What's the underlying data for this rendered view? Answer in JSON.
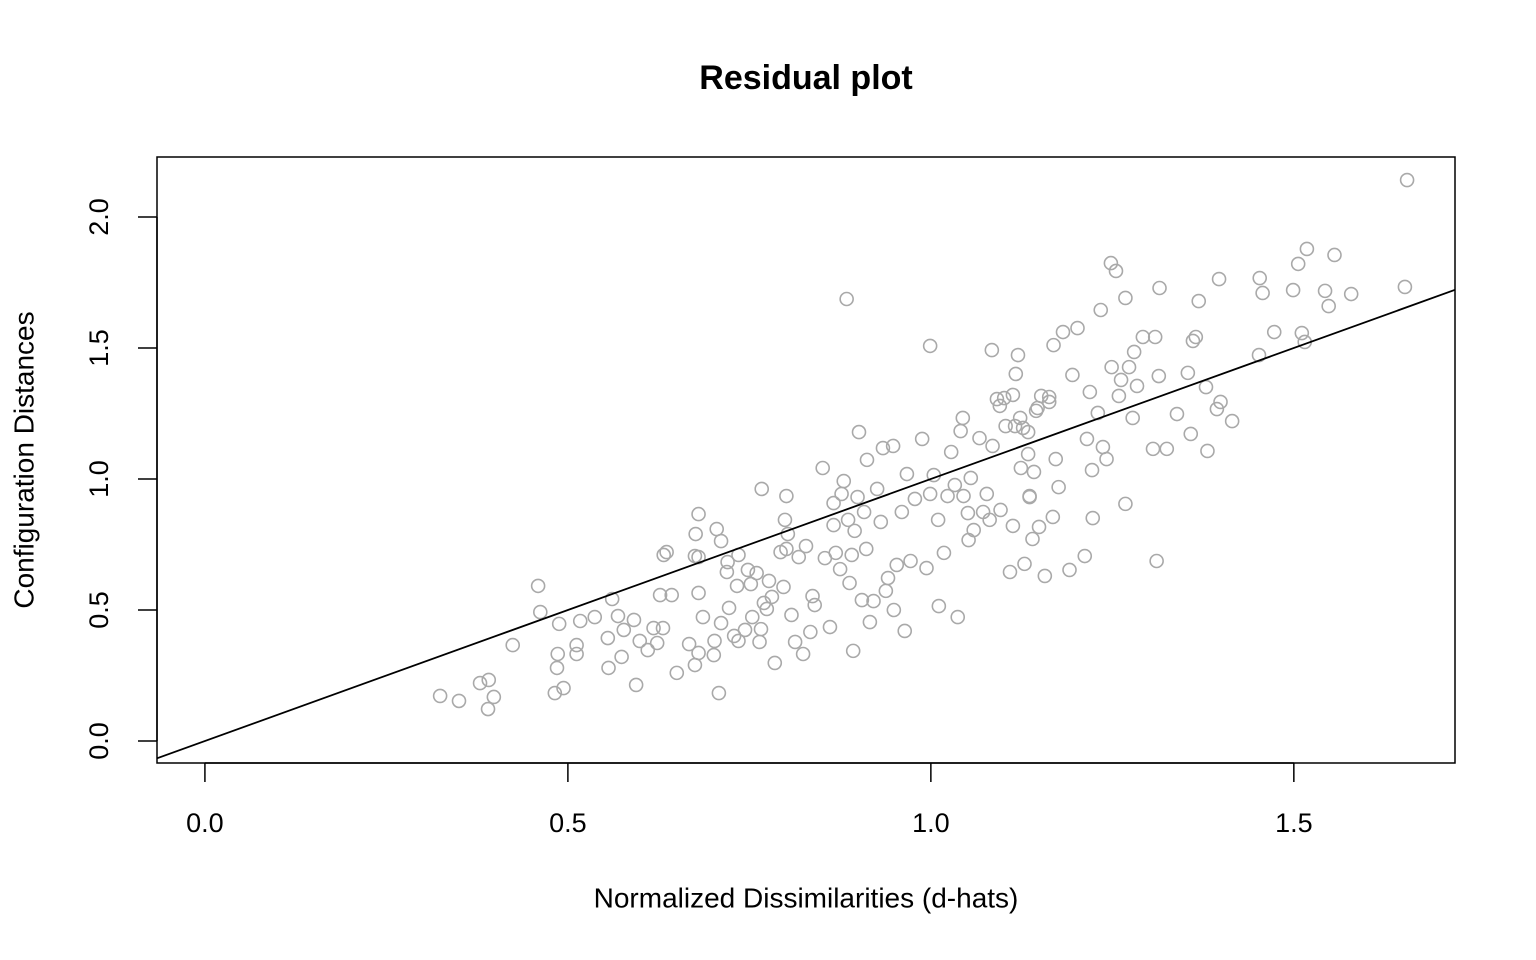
{
  "chart_data": {
    "type": "scatter",
    "title": "Residual plot",
    "x_label": "Normalized Dissimilarities (d-hats)",
    "y_label": "Configuration Distances",
    "point_color": "#a9a9a9",
    "line_color": "#000000",
    "reference_line": {
      "intercept": 0,
      "slope": 1
    },
    "xlim": [
      -0.066,
      1.722
    ],
    "ylim": [
      -0.084,
      2.229
    ],
    "xticks": [
      {
        "value": 0,
        "label": "0.0"
      },
      0.5,
      {
        "value": 1,
        "label": "1.0"
      },
      1.5
    ],
    "yticks": [
      {
        "value": 0,
        "label": "0.0"
      },
      0.5,
      {
        "value": 1,
        "label": "1.0"
      },
      1.5,
      {
        "value": 2,
        "label": "2.0"
      }
    ],
    "x": [
      0.324,
      0.35,
      0.379,
      0.391,
      0.39,
      0.398,
      0.424,
      0.459,
      0.462,
      0.482,
      0.485,
      0.488,
      0.486,
      0.494,
      0.512,
      0.512,
      0.517,
      0.537,
      0.555,
      0.556,
      0.561,
      0.569,
      0.574,
      0.577,
      0.591,
      0.594,
      0.599,
      0.61,
      0.618,
      0.623,
      0.627,
      0.632,
      0.636,
      0.631,
      0.643,
      0.65,
      0.667,
      0.675,
      0.676,
      0.68,
      0.68,
      0.68,
      0.68,
      0.675,
      0.686,
      0.701,
      0.702,
      0.705,
      0.708,
      0.711,
      0.711,
      0.719,
      0.72,
      0.722,
      0.729,
      0.735,
      0.733,
      0.735,
      0.744,
      0.748,
      0.754,
      0.752,
      0.76,
      0.764,
      0.767,
      0.766,
      0.77,
      0.774,
      0.777,
      0.781,
      0.785,
      0.793,
      0.797,
      0.799,
      0.801,
      0.803,
      0.801,
      0.808,
      0.813,
      0.818,
      0.824,
      0.828,
      0.834,
      0.837,
      0.84,
      0.851,
      0.854,
      0.861,
      0.866,
      0.866,
      0.869,
      0.875,
      0.877,
      0.884,
      0.88,
      0.886,
      0.888,
      0.891,
      0.893,
      0.895,
      0.901,
      0.899,
      0.905,
      0.908,
      0.911,
      0.912,
      0.916,
      0.921,
      0.926,
      0.931,
      0.934,
      0.938,
      0.941,
      0.948,
      0.949,
      0.953,
      0.96,
      0.964,
      0.967,
      0.972,
      0.978,
      0.988,
      0.994,
      0.999,
      0.999,
      1.004,
      1.01,
      1.011,
      1.018,
      1.023,
      1.028,
      1.033,
      1.037,
      1.041,
      1.044,
      1.045,
      1.051,
      1.052,
      1.055,
      1.059,
      1.067,
      1.072,
      1.077,
      1.081,
      1.084,
      1.085,
      1.091,
      1.096,
      1.103,
      1.109,
      1.113,
      1.117,
      1.12,
      1.123,
      1.124,
      1.129,
      1.134,
      1.136,
      1.14,
      1.145,
      1.149,
      1.152,
      1.157,
      1.163,
      1.168,
      1.169,
      1.172,
      1.176,
      1.182,
      1.191,
      1.195,
      1.202,
      1.212,
      1.215,
      1.219,
      1.222,
      1.223,
      1.23,
      1.234,
      1.237,
      1.242,
      1.248,
      1.249,
      1.255,
      1.259,
      1.262,
      1.268,
      1.268,
      1.273,
      1.278,
      1.28,
      1.284,
      1.292,
      1.306,
      1.309,
      1.311,
      1.314,
      1.315,
      1.325,
      1.339,
      1.354,
      1.358,
      1.361,
      1.365,
      1.369,
      1.379,
      1.381,
      1.394,
      1.397,
      1.399,
      1.415,
      1.452,
      1.453,
      1.457,
      1.473,
      1.499,
      1.506,
      1.511,
      1.515,
      1.518,
      1.543,
      1.548,
      1.556,
      1.579,
      1.653,
      1.656,
      1.095,
      1.101,
      1.113,
      1.116,
      1.127,
      1.134,
      1.136,
      1.142,
      1.163,
      1.147
    ],
    "y": [
      0.172,
      0.153,
      0.221,
      0.233,
      0.122,
      0.168,
      0.366,
      0.592,
      0.492,
      0.183,
      0.279,
      0.447,
      0.332,
      0.202,
      0.366,
      0.332,
      0.458,
      0.473,
      0.393,
      0.279,
      0.542,
      0.477,
      0.321,
      0.424,
      0.462,
      0.214,
      0.382,
      0.347,
      0.431,
      0.374,
      0.557,
      0.71,
      0.721,
      0.431,
      0.557,
      0.26,
      0.37,
      0.706,
      0.79,
      0.866,
      0.565,
      0.702,
      0.336,
      0.29,
      0.473,
      0.328,
      0.382,
      0.809,
      0.183,
      0.763,
      0.45,
      0.645,
      0.683,
      0.508,
      0.401,
      0.71,
      0.592,
      0.382,
      0.424,
      0.653,
      0.473,
      0.599,
      0.641,
      0.378,
      0.962,
      0.427,
      0.527,
      0.504,
      0.611,
      0.55,
      0.298,
      0.721,
      0.588,
      0.844,
      0.935,
      0.79,
      0.733,
      0.481,
      0.378,
      0.702,
      0.332,
      0.744,
      0.416,
      0.553,
      0.519,
      1.042,
      0.698,
      0.435,
      0.824,
      0.908,
      0.718,
      0.656,
      0.943,
      1.687,
      0.992,
      0.844,
      0.603,
      0.71,
      0.344,
      0.802,
      1.179,
      0.931,
      0.538,
      0.874,
      0.733,
      1.073,
      0.454,
      0.534,
      0.962,
      0.836,
      1.118,
      0.573,
      0.622,
      1.126,
      0.5,
      0.672,
      0.874,
      0.42,
      1.019,
      0.687,
      0.924,
      1.153,
      0.66,
      1.508,
      0.943,
      1.015,
      0.844,
      0.515,
      0.718,
      0.935,
      1.103,
      0.977,
      0.473,
      1.183,
      1.233,
      0.935,
      0.87,
      0.767,
      1.004,
      0.805,
      1.156,
      0.874,
      0.943,
      0.844,
      1.492,
      1.126,
      1.305,
      0.882,
      1.202,
      0.645,
      0.821,
      1.401,
      1.473,
      1.233,
      1.042,
      0.676,
      1.095,
      0.935,
      0.771,
      1.26,
      0.817,
      1.317,
      0.63,
      1.294,
      0.855,
      1.511,
      1.076,
      0.969,
      1.561,
      0.653,
      1.397,
      1.576,
      0.706,
      1.153,
      1.332,
      1.034,
      0.851,
      1.252,
      1.645,
      1.122,
      1.076,
      1.824,
      1.427,
      1.794,
      1.317,
      1.378,
      1.691,
      0.905,
      1.427,
      1.233,
      1.485,
      1.355,
      1.542,
      1.115,
      1.542,
      0.687,
      1.393,
      1.729,
      1.115,
      1.248,
      1.405,
      1.172,
      1.527,
      1.542,
      1.679,
      1.351,
      1.107,
      1.267,
      1.763,
      1.294,
      1.221,
      1.473,
      1.767,
      1.71,
      1.561,
      1.721,
      1.821,
      1.557,
      1.523,
      1.878,
      1.718,
      1.66,
      1.855,
      1.706,
      1.733,
      2.141,
      1.279,
      1.309,
      1.321,
      1.202,
      1.195,
      1.179,
      0.931,
      1.027,
      1.313,
      1.271
    ]
  }
}
